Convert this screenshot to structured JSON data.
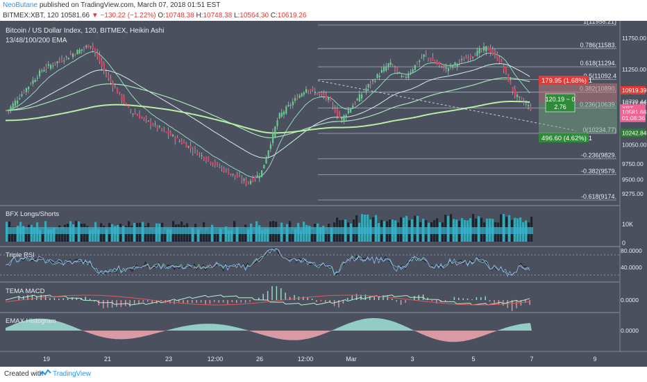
{
  "header": {
    "author": "NeoButane",
    "published": " published on TradingView.com, March 07, 2018 01:51 EST",
    "symbol": "BITMEX:XBT, 120 ",
    "price": "10581.66",
    "change": "▼ −130.22 (−1.22%)",
    "o_label": "O:",
    "o_value": "10748.38",
    "h_label": "H:",
    "h_value": "10748.38",
    "l_label": "L:",
    "l_value": "10564.30",
    "c_label": "C:",
    "c_value": "10619.26"
  },
  "legend": {
    "title": "Bitcoin / US Dollar Index, 120, BITMEX, Heikin Ashi",
    "ema": "13/48/100/200 EMA"
  },
  "fib_levels": [
    {
      "label": "1(11958.21)",
      "price": 11958.21
    },
    {
      "label": "0.786(11583.",
      "price": 11583
    },
    {
      "label": "0.618(11294.",
      "price": 11294
    },
    {
      "label": "0.5(11092.4",
      "price": 11092.4
    },
    {
      "label": "0.382(10890.",
      "price": 10890
    },
    {
      "label": "0.236(10639.",
      "price": 10639
    },
    {
      "label": "0(10234.77)",
      "price": 10234.77
    },
    {
      "label": "-0.236(9829.",
      "price": 9829
    },
    {
      "label": "-0.382(9579.",
      "price": 9579
    },
    {
      "label": "-0.618(9174.",
      "price": 9174
    }
  ],
  "price_axis": {
    "ticks": [
      "11750.00",
      "11250.00",
      "10739.44",
      "10711.88",
      "10050.00",
      "9750.00",
      "9500.00",
      "9275.00"
    ],
    "tick_values": [
      11750,
      11250,
      10739.44,
      10711.88,
      10050,
      9750,
      9500,
      9275
    ],
    "ylim": [
      9275,
      12000
    ],
    "badges": [
      {
        "text": "10919.39",
        "value": 10919.39,
        "color": "#e53935"
      },
      {
        "text": "XBT",
        "value": 10630,
        "color": "#f06292"
      },
      {
        "text": "10581.66",
        "value": 10570,
        "color": "#f06292"
      },
      {
        "text": "01:08:36",
        "value": 10480,
        "color": "#f06292"
      },
      {
        "text": "10242.84",
        "value": 10242.84,
        "color": "#2e7d32"
      }
    ]
  },
  "position_tool": {
    "stop_label": "179.95 (1.68%)  1",
    "target_label": "496.60 (4.62%)  1",
    "ratio_line1": "120.19 ~ 0",
    "ratio_line2": "2.76"
  },
  "panes": {
    "bfx": {
      "title": "BFX Longs/Shorts",
      "ticks": [
        "10K",
        "0"
      ]
    },
    "rsi": {
      "title": "Triple RSI",
      "ticks": [
        "80.0000",
        "40.0000"
      ]
    },
    "tema": {
      "title": "TEMA MACD",
      "ticks": [
        "0.0000"
      ]
    },
    "emax": {
      "title": "EMAX Histogram",
      "ticks": [
        "0.0000"
      ]
    }
  },
  "time_axis": {
    "labels": [
      "19",
      "21",
      "23",
      "12:00",
      "26",
      "12:00",
      "Mar",
      "3",
      "5",
      "7",
      "9"
    ]
  },
  "chart_data": {
    "type": "candlestick",
    "title": "Bitcoin / US Dollar Index, 120, BITMEX, Heikin Ashi",
    "x_labels": [
      "19",
      "21",
      "23",
      "12:00",
      "26",
      "12:00",
      "Mar",
      "3",
      "5",
      "7",
      "9"
    ],
    "ylim": [
      9275,
      12000
    ],
    "close_path": [
      [
        "19",
        10600
      ],
      [
        "20",
        11250
      ],
      [
        "20 late",
        11650
      ],
      [
        "21",
        11200
      ],
      [
        "21 late",
        10600
      ],
      [
        "22",
        10300
      ],
      [
        "23",
        10100
      ],
      [
        "23 late",
        9800
      ],
      [
        "24",
        9600
      ],
      [
        "25",
        9450
      ],
      [
        "26",
        9600
      ],
      [
        "26 late",
        10500
      ],
      [
        "27",
        10950
      ],
      [
        "27 late",
        10800
      ],
      [
        "28",
        10450
      ],
      [
        "Mar",
        11000
      ],
      [
        "1",
        11350
      ],
      [
        "2",
        11100
      ],
      [
        "3",
        11480
      ],
      [
        "4",
        11250
      ],
      [
        "5",
        11600
      ],
      [
        "5 late",
        11380
      ],
      [
        "6",
        10850
      ],
      [
        "7",
        10620
      ]
    ],
    "series": [
      {
        "name": "13 EMA"
      },
      {
        "name": "48 EMA"
      },
      {
        "name": "100 EMA"
      },
      {
        "name": "200 EMA"
      }
    ]
  }
}
